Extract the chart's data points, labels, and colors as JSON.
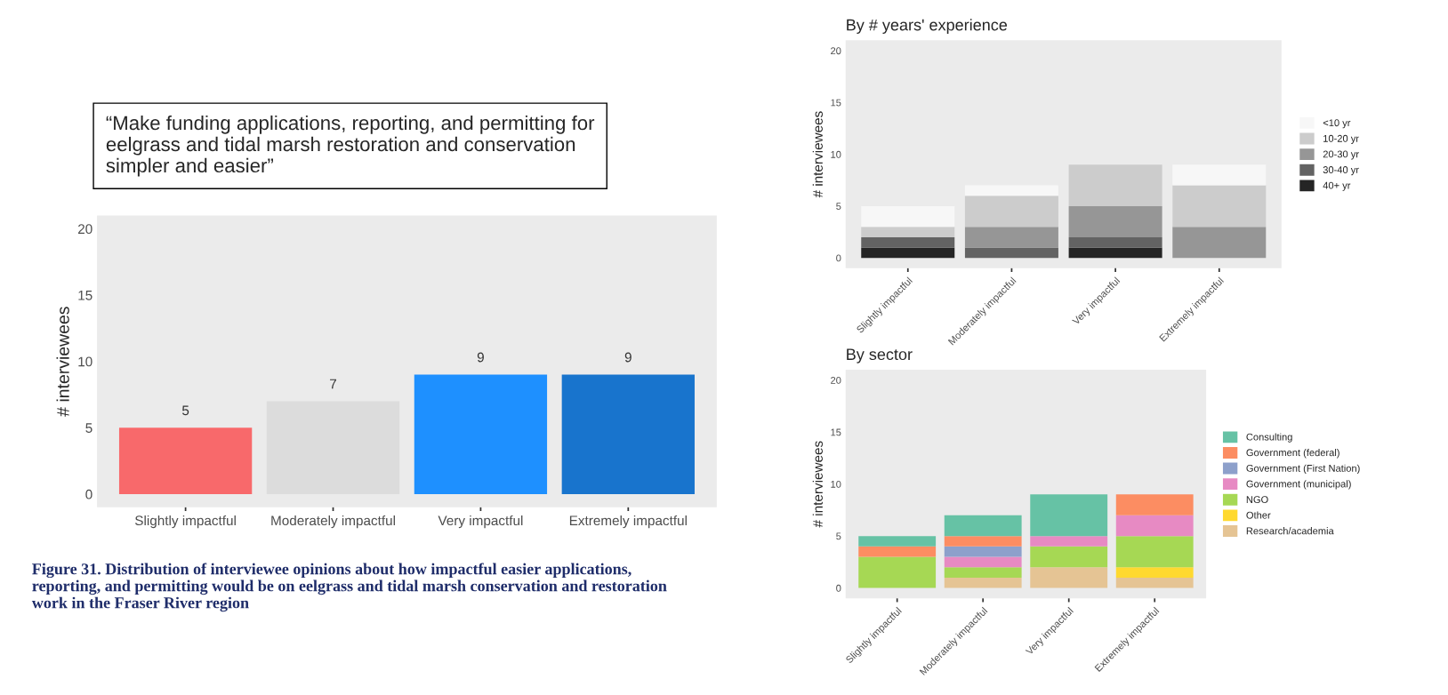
{
  "chart_data": [
    {
      "type": "bar",
      "ylabel": "# interviewees",
      "categories": [
        "Slightly impactful",
        "Moderately impactful",
        "Very impactful",
        "Extremely impactful"
      ],
      "values": [
        5,
        7,
        9,
        9
      ],
      "colors": [
        "#f8696b",
        "#dcdcdc",
        "#1e90ff",
        "#1874cd"
      ],
      "data_labels": true,
      "ylim": [
        -1,
        21
      ],
      "yticks": [
        0,
        5,
        10,
        15,
        20
      ],
      "grid": false,
      "legend": false,
      "annotations": [
        "“Make funding applications, reporting, and permitting for eelgrass and tidal marsh restoration and conservation simpler and easier”",
        "Figure 31. Distribution of interviewee opinions about how impactful easier applications, reporting, and permitting would be on eelgrass and tidal marsh conservation and restoration work in the Fraser River region"
      ]
    },
    {
      "type": "bar",
      "title": "By # years' experience",
      "ylabel": "# interviewees",
      "categories": [
        "Slightly impactful",
        "Moderately impactful",
        "Very impactful",
        "Extremely impactful"
      ],
      "stacked": true,
      "ylim": [
        -1,
        21
      ],
      "yticks": [
        0,
        5,
        10,
        15,
        20
      ],
      "grid": false,
      "legend": "right",
      "series": [
        {
          "name": "40+ yr",
          "color": "#252525",
          "values": [
            1,
            0,
            1,
            0
          ]
        },
        {
          "name": "30-40 yr",
          "color": "#636363",
          "values": [
            1,
            1,
            1,
            0
          ]
        },
        {
          "name": "20-30 yr",
          "color": "#969696",
          "values": [
            0,
            2,
            3,
            3
          ]
        },
        {
          "name": "10-20 yr",
          "color": "#cccccc",
          "values": [
            1,
            3,
            4,
            4
          ]
        },
        {
          "name": "<10 yr",
          "color": "#f7f7f7",
          "values": [
            2,
            1,
            0,
            2
          ]
        }
      ]
    },
    {
      "type": "bar",
      "title": "By sector",
      "ylabel": "# interviewees",
      "categories": [
        "Slightly impactful",
        "Moderately impactful",
        "Very impactful",
        "Extremely impactful"
      ],
      "stacked": true,
      "ylim": [
        -1,
        21
      ],
      "yticks": [
        0,
        5,
        10,
        15,
        20
      ],
      "grid": false,
      "legend": "right",
      "series": [
        {
          "name": "Research/academia",
          "color": "#e5c494",
          "values": [
            0,
            1,
            2,
            1
          ]
        },
        {
          "name": "Other",
          "color": "#ffd92f",
          "values": [
            0,
            0,
            0,
            1
          ]
        },
        {
          "name": "NGO",
          "color": "#a6d854",
          "values": [
            3,
            1,
            2,
            3
          ]
        },
        {
          "name": "Government (municipal)",
          "color": "#e78ac3",
          "values": [
            0,
            1,
            1,
            2
          ]
        },
        {
          "name": "Government (First Nation)",
          "color": "#8da0cb",
          "values": [
            0,
            1,
            0,
            0
          ]
        },
        {
          "name": "Government (federal)",
          "color": "#fc8d62",
          "values": [
            1,
            1,
            0,
            2
          ]
        },
        {
          "name": "Consulting",
          "color": "#66c2a5",
          "values": [
            1,
            2,
            4,
            0
          ]
        }
      ]
    }
  ]
}
